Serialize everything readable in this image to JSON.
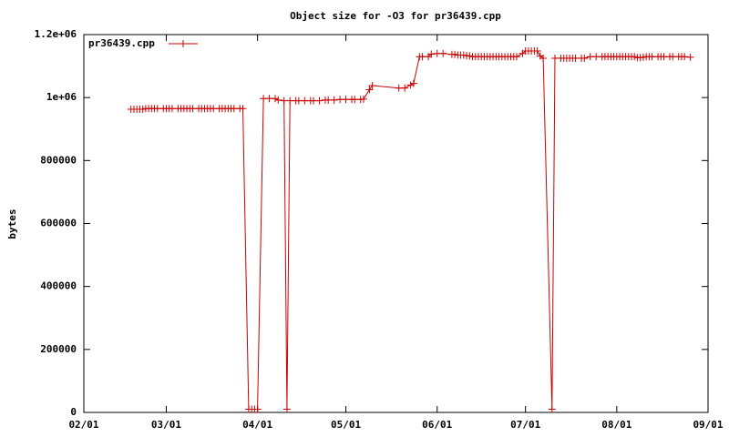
{
  "chart_data": {
    "type": "line",
    "title": "Object size for -O3 for pr36439.cpp",
    "y_label": "bytes",
    "legend": "top-left",
    "xlim": [
      "02/01",
      "09/01"
    ],
    "xticks": [
      "02/01",
      "03/01",
      "04/01",
      "05/01",
      "06/01",
      "07/01",
      "08/01",
      "09/01"
    ],
    "ylim": [
      0,
      1200000
    ],
    "yticks": [
      0,
      200000,
      400000,
      600000,
      800000,
      {
        "value": 1000000,
        "label": "1e+06"
      },
      {
        "value": 1200000,
        "label": "1.2e+06"
      }
    ],
    "x": [
      "02/17",
      "02/18",
      "02/19",
      "02/20",
      "02/21",
      "02/22",
      "02/23",
      "02/24",
      "02/25",
      "02/26",
      "02/28",
      "03/01",
      "03/02",
      "03/03",
      "03/05",
      "03/06",
      "03/07",
      "03/08",
      "03/09",
      "03/10",
      "03/12",
      "03/13",
      "03/14",
      "03/15",
      "03/16",
      "03/17",
      "03/19",
      "03/20",
      "03/21",
      "03/22",
      "03/23",
      "03/24",
      "03/26",
      "03/27",
      "03/29",
      "03/30",
      "03/31",
      "04/01",
      "04/03",
      "04/05",
      "04/07",
      "04/08",
      "04/10",
      "04/11",
      "04/12",
      "04/14",
      "04/15",
      "04/17",
      "04/19",
      "04/20",
      "04/22",
      "04/24",
      "04/25",
      "04/27",
      "04/29",
      "05/01",
      "05/03",
      "05/04",
      "05/06",
      "05/07",
      "05/09",
      "05/10",
      "05/19",
      "05/21",
      "05/23",
      "05/24",
      "05/26",
      "05/27",
      "05/29",
      "05/30",
      "06/01",
      "06/03",
      "06/06",
      "06/07",
      "06/08",
      "06/09",
      "06/10",
      "06/11",
      "06/12",
      "06/13",
      "06/14",
      "06/15",
      "06/16",
      "06/17",
      "06/18",
      "06/19",
      "06/20",
      "06/21",
      "06/22",
      "06/23",
      "06/24",
      "06/25",
      "06/26",
      "06/27",
      "06/28",
      "06/30",
      "07/01",
      "07/02",
      "07/03",
      "07/04",
      "07/05",
      "07/06",
      "07/07",
      "07/10",
      "07/11",
      "07/13",
      "07/14",
      "07/15",
      "07/16",
      "07/17",
      "07/18",
      "07/20",
      "07/21",
      "07/23",
      "07/25",
      "07/27",
      "07/28",
      "07/29",
      "07/30",
      "07/31",
      "08/01",
      "08/02",
      "08/03",
      "08/04",
      "08/05",
      "08/06",
      "08/07",
      "08/08",
      "08/09",
      "08/10",
      "08/11",
      "08/12",
      "08/13",
      "08/15",
      "08/16",
      "08/17",
      "08/19",
      "08/20",
      "08/22",
      "08/23",
      "08/24",
      "08/26"
    ],
    "series": [
      {
        "name": "pr36439.cpp",
        "color": "#cc0000",
        "values": [
          963000,
          963000,
          963000,
          963000,
          963000,
          965000,
          965000,
          965000,
          965000,
          965000,
          965000,
          965000,
          965000,
          965000,
          965000,
          965000,
          965000,
          965000,
          965000,
          965000,
          965000,
          965000,
          965000,
          965000,
          965000,
          965000,
          965000,
          965000,
          965000,
          965000,
          965000,
          965000,
          965000,
          965000,
          10000,
          10000,
          10000,
          10000,
          997000,
          997000,
          997000,
          992000,
          990000,
          10000,
          990000,
          990000,
          990000,
          990000,
          990000,
          990000,
          990000,
          992000,
          992000,
          992000,
          994000,
          994000,
          994000,
          994000,
          994000,
          995000,
          1025000,
          1038000,
          1030000,
          1030000,
          1040000,
          1045000,
          1130000,
          1130000,
          1130000,
          1138000,
          1140000,
          1140000,
          1137000,
          1137000,
          1135000,
          1135000,
          1135000,
          1133000,
          1132000,
          1130000,
          1130000,
          1130000,
          1130000,
          1130000,
          1130000,
          1130000,
          1130000,
          1130000,
          1130000,
          1130000,
          1130000,
          1130000,
          1130000,
          1130000,
          1130000,
          1140000,
          1148000,
          1148000,
          1148000,
          1148000,
          1148000,
          1132000,
          1125000,
          10000,
          1125000,
          1125000,
          1125000,
          1125000,
          1125000,
          1125000,
          1125000,
          1125000,
          1125000,
          1130000,
          1130000,
          1130000,
          1130000,
          1130000,
          1130000,
          1130000,
          1130000,
          1130000,
          1130000,
          1130000,
          1130000,
          1130000,
          1130000,
          1127000,
          1127000,
          1128000,
          1130000,
          1130000,
          1130000,
          1130000,
          1130000,
          1130000,
          1130000,
          1130000,
          1130000,
          1130000,
          1130000,
          1128000
        ]
      }
    ]
  }
}
